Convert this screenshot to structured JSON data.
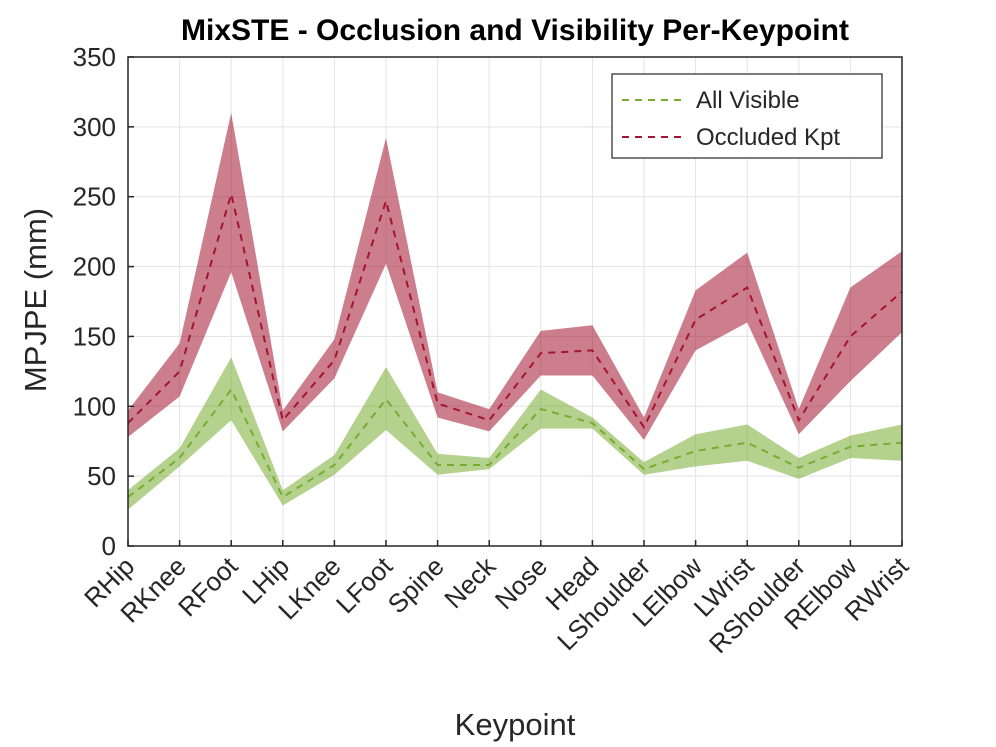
{
  "chart_data": {
    "type": "line",
    "title": "MixSTE - Occlusion and Visibility Per-Keypoint",
    "xlabel": "Keypoint",
    "ylabel": "MPJPE (mm)",
    "ylim": [
      0,
      350
    ],
    "yticks": [
      0,
      50,
      100,
      150,
      200,
      250,
      300,
      350
    ],
    "grid": true,
    "legend_position": "top-right",
    "categories": [
      "RHip",
      "RKnee",
      "RFoot",
      "LHip",
      "LKnee",
      "LFoot",
      "Spine",
      "Neck",
      "Nose",
      "Head",
      "LShoulder",
      "LElbow",
      "LWrist",
      "RShoulder",
      "RElbow",
      "RWrist"
    ],
    "series": [
      {
        "name": "All Visible",
        "color": "#77ac30",
        "values": [
          35,
          63,
          112,
          35,
          58,
          105,
          58,
          58,
          98,
          88,
          55,
          68,
          74,
          56,
          71,
          74
        ],
        "upper": [
          40,
          70,
          135,
          40,
          65,
          128,
          66,
          63,
          112,
          92,
          60,
          80,
          87,
          63,
          79,
          87
        ],
        "lower": [
          26,
          57,
          90,
          29,
          51,
          83,
          51,
          55,
          84,
          84,
          51,
          57,
          61,
          48,
          63,
          61
        ]
      },
      {
        "name": "Occluded Kpt",
        "color": "#a2142f",
        "values": [
          88,
          125,
          252,
          90,
          133,
          247,
          102,
          90,
          138,
          140,
          85,
          162,
          185,
          90,
          150,
          182
        ],
        "upper": [
          97,
          145,
          310,
          97,
          148,
          292,
          110,
          98,
          154,
          158,
          92,
          183,
          210,
          98,
          185,
          211
        ],
        "lower": [
          78,
          107,
          196,
          82,
          120,
          202,
          92,
          82,
          122,
          122,
          76,
          140,
          160,
          80,
          118,
          153
        ]
      }
    ]
  }
}
